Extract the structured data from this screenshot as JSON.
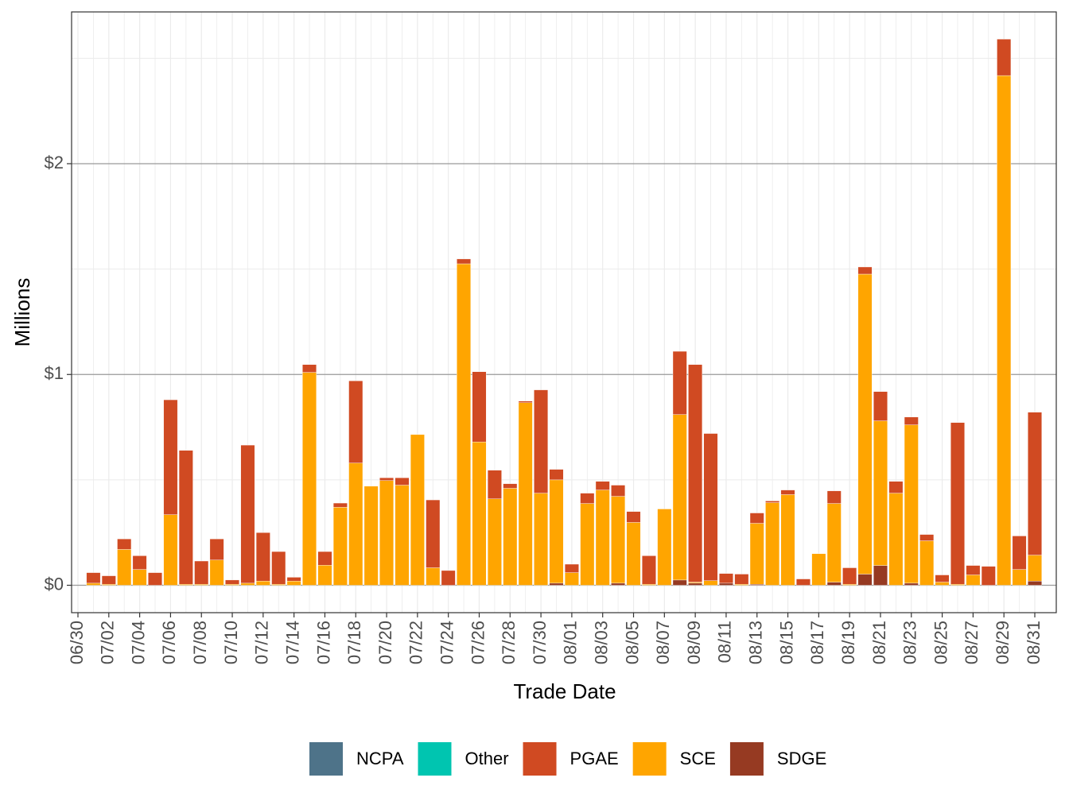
{
  "chart_data": {
    "type": "bar",
    "stacked": true,
    "x_label": "Trade Date",
    "y_label": "Millions",
    "categories": [
      "06/30",
      null,
      "07/02",
      null,
      "07/04",
      null,
      "07/06",
      null,
      "07/08",
      null,
      "07/10",
      null,
      "07/12",
      null,
      "07/14",
      null,
      "07/16",
      null,
      "07/18",
      null,
      "07/20",
      null,
      "07/22",
      null,
      "07/24",
      null,
      "07/26",
      null,
      "07/28",
      null,
      "07/30",
      null,
      "08/01",
      null,
      "08/03",
      null,
      "08/05",
      null,
      "08/07",
      null,
      "08/09",
      null,
      "08/11",
      null,
      "08/13",
      null,
      "08/15",
      null,
      "08/17",
      null,
      "08/19",
      null,
      "08/21",
      null,
      "08/23",
      null,
      "08/25",
      null,
      "08/27",
      null,
      "08/29",
      null,
      "08/31"
    ],
    "ylim": [
      -0.13,
      2.72
    ],
    "yticks": [
      {
        "value": 0,
        "label": "$0"
      },
      {
        "value": 1,
        "label": "$1"
      },
      {
        "value": 2,
        "label": "$2"
      }
    ],
    "grid": true,
    "legend": "bottom",
    "series": [
      {
        "name": "NCPA",
        "color": "#4e7389",
        "values": [
          null,
          null,
          null,
          null,
          null,
          null,
          null,
          null,
          null,
          null,
          null,
          null,
          null,
          null,
          null,
          null,
          null,
          null,
          null,
          null,
          null,
          null,
          null,
          null,
          null,
          null,
          null,
          null,
          null,
          null,
          null,
          null,
          null,
          null,
          null,
          null,
          null,
          null,
          null,
          null,
          null,
          null,
          null,
          null,
          null,
          null,
          null,
          null,
          null,
          null,
          null,
          null,
          null,
          null,
          null,
          null,
          null,
          null,
          null,
          null,
          null,
          null,
          null
        ]
      },
      {
        "name": "Other",
        "color": "#00c5b0",
        "values": [
          null,
          null,
          null,
          null,
          null,
          null,
          null,
          null,
          null,
          null,
          null,
          null,
          null,
          null,
          null,
          null,
          null,
          null,
          null,
          null,
          null,
          null,
          null,
          null,
          null,
          null,
          null,
          null,
          null,
          null,
          null,
          null,
          null,
          null,
          null,
          null,
          null,
          null,
          null,
          null,
          null,
          null,
          null,
          null,
          null,
          null,
          null,
          null,
          null,
          null,
          null,
          null,
          null,
          null,
          null,
          null,
          null,
          null,
          null,
          null,
          null,
          null,
          null
        ]
      },
      {
        "name": "PGAE",
        "color": "#d04a22",
        "values": [
          null,
          0.05,
          0.04,
          0.05,
          0.065,
          0.06,
          0.545,
          0.635,
          0.11,
          0.1,
          0.02,
          0.655,
          0.23,
          0.155,
          0.018,
          0.037,
          0.065,
          0.02,
          0.39,
          null,
          0.013,
          0.035,
          null,
          0.322,
          0.07,
          0.023,
          0.333,
          0.136,
          0.022,
          0.008,
          0.49,
          0.05,
          0.04,
          0.049,
          0.041,
          0.053,
          0.052,
          0.135,
          null,
          0.3,
          1.032,
          0.698,
          0.046,
          0.048,
          0.049,
          0.008,
          0.022,
          0.03,
          null,
          0.06,
          0.078,
          0.034,
          0.139,
          0.056,
          0.037,
          0.03,
          0.034,
          0.767,
          0.045,
          0.09,
          0.173,
          0.159,
          0.678
        ]
      },
      {
        "name": "SCE",
        "color": "#ffa500",
        "values": [
          null,
          0.01,
          0.005,
          0.17,
          0.075,
          null,
          0.335,
          0.005,
          0.005,
          0.12,
          0.005,
          0.01,
          0.02,
          0.005,
          0.02,
          1.01,
          0.095,
          0.37,
          0.58,
          0.47,
          0.497,
          0.475,
          0.715,
          0.083,
          null,
          1.525,
          0.68,
          0.41,
          0.46,
          0.866,
          0.437,
          0.49,
          0.06,
          0.388,
          0.452,
          0.412,
          0.298,
          0.005,
          0.362,
          0.785,
          0.005,
          0.022,
          null,
          0.005,
          0.289,
          0.392,
          0.43,
          null,
          0.15,
          0.373,
          0.005,
          1.423,
          0.686,
          0.437,
          0.751,
          0.211,
          0.015,
          0.005,
          0.049,
          null,
          2.418,
          0.075,
          0.123
        ]
      },
      {
        "name": "SDGE",
        "color": "#963a22",
        "values": [
          null,
          null,
          null,
          null,
          null,
          null,
          null,
          null,
          null,
          null,
          null,
          null,
          null,
          null,
          null,
          null,
          null,
          null,
          null,
          null,
          null,
          null,
          null,
          null,
          null,
          null,
          null,
          null,
          null,
          null,
          null,
          0.01,
          null,
          null,
          null,
          0.01,
          null,
          null,
          null,
          0.025,
          0.01,
          null,
          0.01,
          null,
          0.005,
          null,
          null,
          null,
          null,
          0.015,
          null,
          0.053,
          0.094,
          null,
          0.01,
          null,
          null,
          null,
          null,
          null,
          null,
          null,
          0.02
        ]
      }
    ]
  }
}
